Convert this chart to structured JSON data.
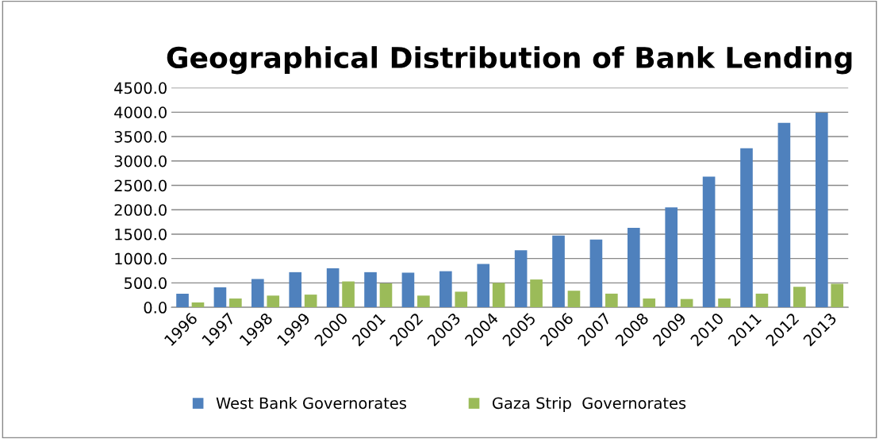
{
  "chart_data": {
    "type": "bar",
    "title": "Geographical Distribution of Bank Lending",
    "categories": [
      "1996",
      "1997",
      "1998",
      "1999",
      "2000",
      "2001",
      "2002",
      "2003",
      "2004",
      "2005",
      "2006",
      "2007",
      "2008",
      "2009",
      "2010",
      "2011",
      "2012",
      "2013"
    ],
    "series": [
      {
        "name": "West Bank Governorates",
        "color": "#4f81bd",
        "values": [
          280,
          410,
          580,
          720,
          800,
          720,
          710,
          740,
          890,
          1170,
          1470,
          1390,
          1630,
          2050,
          2680,
          3260,
          3780,
          3990
        ]
      },
      {
        "name": "Gaza Strip  Governorates",
        "color": "#9bbb59",
        "values": [
          100,
          180,
          240,
          260,
          530,
          490,
          240,
          320,
          500,
          570,
          340,
          280,
          180,
          170,
          180,
          280,
          420,
          480
        ]
      }
    ],
    "ylim": [
      0,
      4500
    ],
    "yticks": [
      {
        "value": 0,
        "label": "0.0"
      },
      {
        "value": 500,
        "label": "500.0"
      },
      {
        "value": 1000,
        "label": "1000.0"
      },
      {
        "value": 1500,
        "label": "1500.0"
      },
      {
        "value": 2000,
        "label": "2000.0"
      },
      {
        "value": 2500,
        "label": "2500.0"
      },
      {
        "value": 3000,
        "label": "3000.0"
      },
      {
        "value": 3500,
        "label": "3500.0"
      },
      {
        "value": 4000,
        "label": "4000.0"
      },
      {
        "value": 4500,
        "label": "4500.0"
      }
    ],
    "grid": "y",
    "legend": "bottom"
  }
}
